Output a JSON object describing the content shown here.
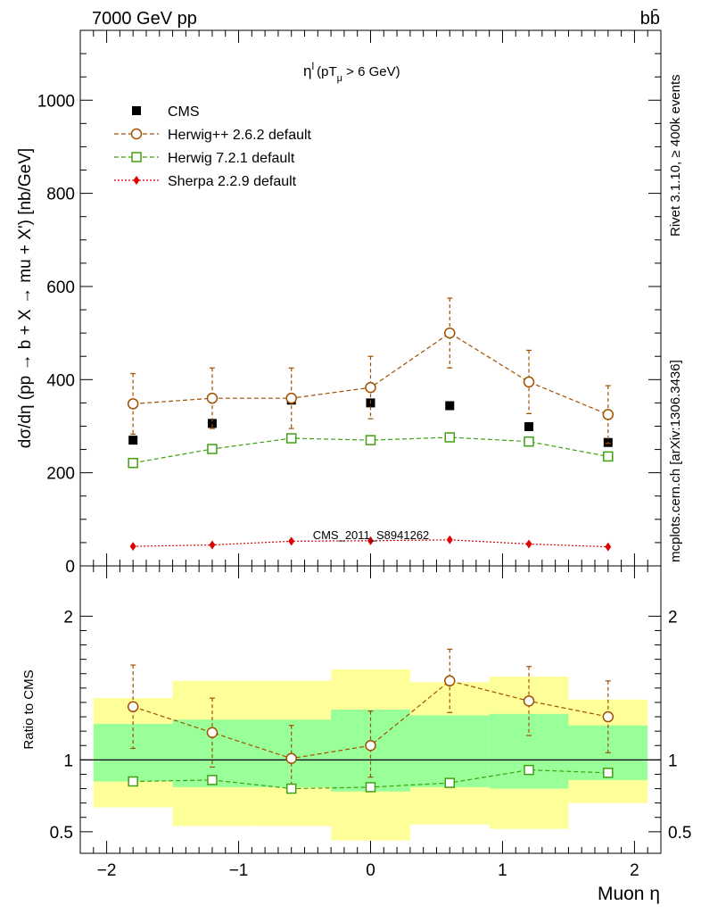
{
  "header": {
    "left_label": "7000 GeV pp",
    "right_label": "bb̄"
  },
  "side_labels": {
    "rivet": "Rivet 3.1.10, ≥ 400k events",
    "mcplots": "mcplots.cern.ch [arXiv:1306.3436]"
  },
  "chart_data": [
    {
      "type": "scatter",
      "panel": "main",
      "title": "η^l (pT_μ > 6 GeV)",
      "title_main": "η",
      "title_sup": "l",
      "title_paren_open": "(pT",
      "title_sub": "μ",
      "title_rest": " >  6 GeV)",
      "watermark": "CMS_2011_S8941262",
      "ylabel": "dσ/dη (pp → b + X → mu + X') [nb/GeV]",
      "xlim": [
        -2.2,
        2.2
      ],
      "ylim": [
        0,
        1150
      ],
      "yticks": [
        0,
        200,
        400,
        600,
        800,
        1000
      ],
      "x": [
        -1.8,
        -1.2,
        -0.6,
        0.0,
        0.6,
        1.2,
        1.8
      ],
      "series": [
        {
          "name": "CMS",
          "color": "#000000",
          "marker": "filled-square",
          "line": "none",
          "values": [
            270,
            306,
            356,
            350,
            344,
            299,
            265
          ]
        },
        {
          "name": "Herwig++ 2.6.2 default",
          "color": "#a05000",
          "marker": "open-circle",
          "line": "dashed",
          "values": [
            348,
            360,
            360,
            383,
            500,
            395,
            325
          ],
          "err_up": [
            65,
            65,
            65,
            67,
            75,
            68,
            62
          ],
          "err_down": [
            65,
            65,
            65,
            67,
            75,
            68,
            62
          ]
        },
        {
          "name": "Herwig 7.2.1 default",
          "color": "#40a010",
          "marker": "open-square",
          "line": "dashed",
          "values": [
            221,
            251,
            274,
            270,
            276,
            267,
            235
          ]
        },
        {
          "name": "Sherpa 2.2.9 default",
          "color": "#e00000",
          "marker": "filled-diamond",
          "line": "dotted",
          "values": [
            42,
            45,
            53,
            54,
            56,
            47,
            41
          ]
        }
      ],
      "legend": "top-left"
    },
    {
      "type": "scatter",
      "panel": "ratio",
      "ylabel": "Ratio to CMS",
      "xlabel": "Muon η",
      "xlim": [
        -2.2,
        2.2
      ],
      "ylim": [
        0.35,
        2.35
      ],
      "yticks": [
        0.5,
        1,
        2
      ],
      "ytick_labels": [
        "0.5",
        "1",
        "2"
      ],
      "xticks": [
        -2,
        -1,
        0,
        1,
        2
      ],
      "xtick_labels": [
        "−2",
        "−1",
        "0",
        "1",
        "2"
      ],
      "bands": {
        "bin_edges": [
          -2.1,
          -1.5,
          -0.9,
          -0.3,
          0.3,
          0.9,
          1.5,
          2.1
        ],
        "yellow_low": [
          0.67,
          0.54,
          0.54,
          0.44,
          0.55,
          0.52,
          0.7
        ],
        "yellow_high": [
          1.43,
          1.55,
          1.55,
          1.63,
          1.54,
          1.58,
          1.42
        ],
        "green_low": [
          0.85,
          0.81,
          0.81,
          0.78,
          0.81,
          0.8,
          0.86
        ],
        "green_high": [
          1.25,
          1.28,
          1.28,
          1.35,
          1.31,
          1.32,
          1.24
        ]
      },
      "x": [
        -1.8,
        -1.2,
        -0.6,
        0.0,
        0.6,
        1.2,
        1.8
      ],
      "series": [
        {
          "name": "Herwig++ 2.6.2 default",
          "color": "#a05000",
          "marker": "open-circle",
          "line": "dashed",
          "values": [
            1.37,
            1.19,
            1.01,
            1.1,
            1.55,
            1.41,
            1.3
          ],
          "err_up": [
            0.29,
            0.24,
            0.23,
            0.24,
            0.22,
            0.24,
            0.25
          ],
          "err_down": [
            0.29,
            0.24,
            0.23,
            0.22,
            0.22,
            0.24,
            0.25
          ]
        },
        {
          "name": "Herwig 7.2.1 default",
          "color": "#40a010",
          "marker": "open-square",
          "line": "dashed",
          "values": [
            0.85,
            0.86,
            0.8,
            0.81,
            0.84,
            0.93,
            0.91
          ]
        }
      ]
    }
  ]
}
